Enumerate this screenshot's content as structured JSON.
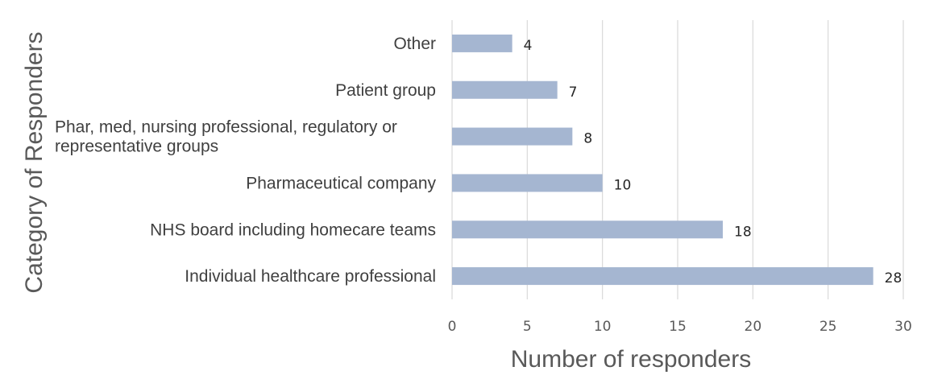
{
  "chart_data": {
    "type": "bar",
    "orientation": "horizontal",
    "categories": [
      "Other",
      "Patient group",
      "Phar, med, nursing professional, regulatory or representative groups",
      "Pharmaceutical company",
      "NHS board including homecare teams",
      "Individual healthcare professional"
    ],
    "category_lines": [
      [
        "Other"
      ],
      [
        "Patient group"
      ],
      [
        "Phar, med, nursing professional, regulatory or",
        "representative groups"
      ],
      [
        "Pharmaceutical company"
      ],
      [
        "NHS board including homecare teams"
      ],
      [
        "Individual healthcare professional"
      ]
    ],
    "values": [
      4,
      7,
      8,
      10,
      18,
      28
    ],
    "data_labels": [
      "4",
      "7",
      "8",
      "10",
      "18",
      "28"
    ],
    "xlabel": "Number of responders",
    "ylabel": "Category of Responders",
    "xlim": [
      0,
      30
    ],
    "xticks": [
      0,
      5,
      10,
      15,
      20,
      25,
      30
    ],
    "grid": "vertical",
    "legend": "none",
    "bar_color": "#a5b6d1",
    "grid_color": "#d9d9d9"
  }
}
